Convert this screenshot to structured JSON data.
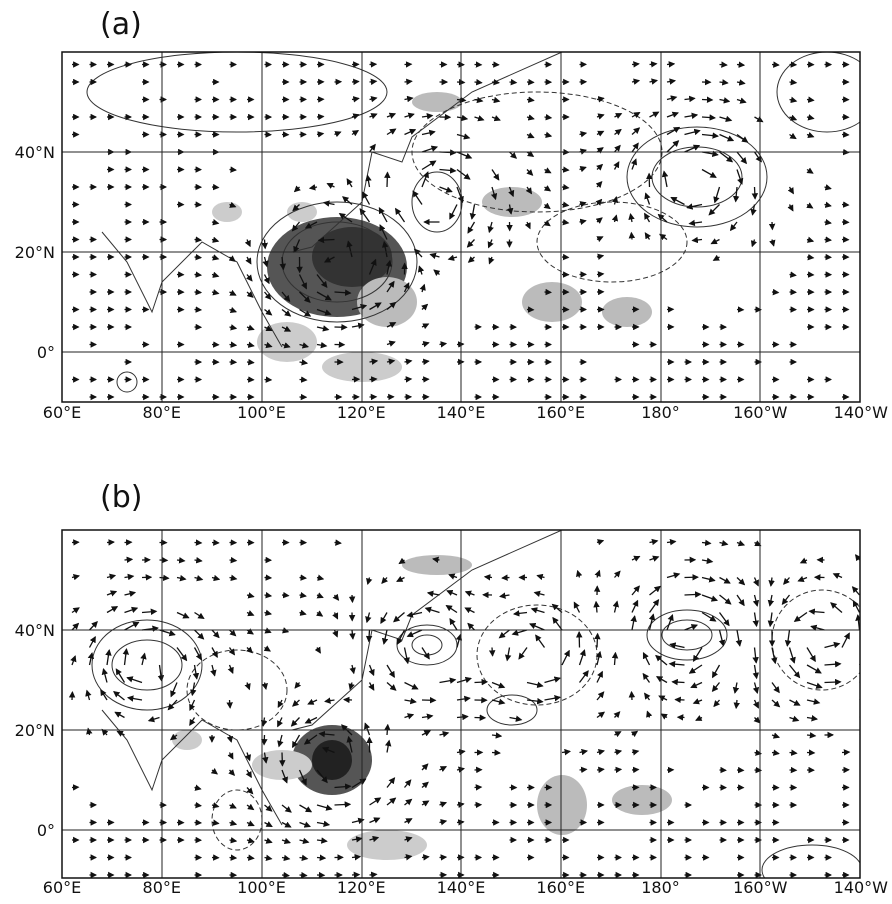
{
  "panels": [
    {
      "label": "(a)"
    },
    {
      "label": "(b)"
    }
  ],
  "lat_labels": [
    "40°N",
    "20°N",
    "0°"
  ],
  "lon_labels": [
    "60°E",
    "80°E",
    "100°E",
    "120°E",
    "140°E",
    "160°E",
    "180°",
    "160°W",
    "140°W"
  ]
}
